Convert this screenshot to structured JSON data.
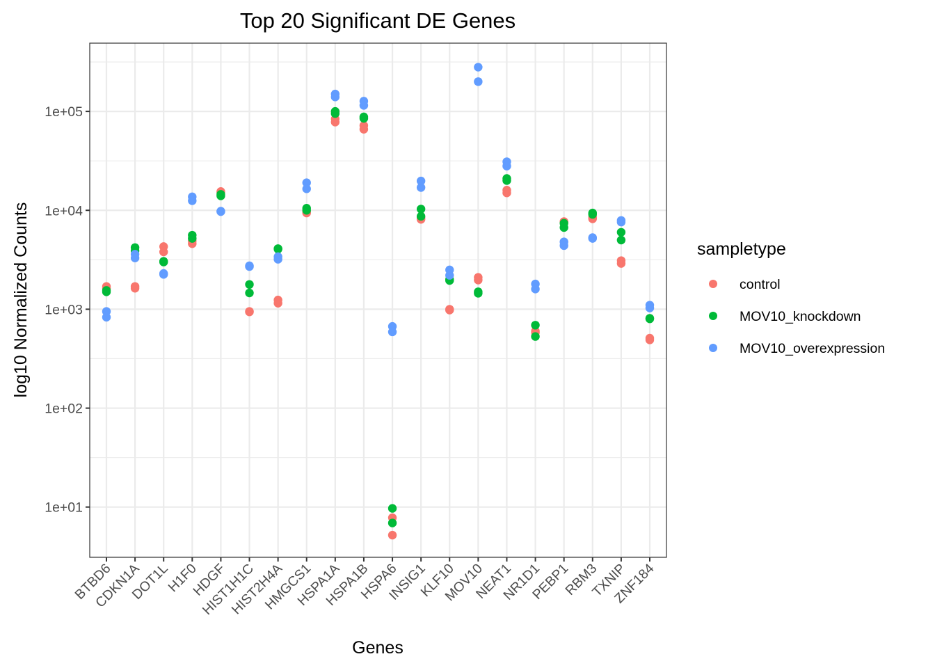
{
  "chart_data": {
    "type": "scatter",
    "title": "Top 20 Significant DE Genes",
    "xlabel": "Genes",
    "ylabel": "log10 Normalized Counts",
    "y_scale": "log10",
    "ylim": [
      3.1,
      490000
    ],
    "y_ticks": [
      10,
      100,
      1000,
      10000,
      100000
    ],
    "y_tick_labels": [
      "1e+01",
      "1e+02",
      "1e+03",
      "1e+04",
      "1e+05"
    ],
    "grid": true,
    "categories": [
      "BTBD6",
      "CDKN1A",
      "DOT1L",
      "H1F0",
      "HDGF",
      "HIST1H1C",
      "HIST2H4A",
      "HMGCS1",
      "HSPA1A",
      "HSPA1B",
      "HSPA6",
      "INSIG1",
      "KLF10",
      "MOV10",
      "NEAT1",
      "NR1D1",
      "PEBP1",
      "RBM3",
      "TXNIP",
      "ZNF184"
    ],
    "legend": {
      "title": "sampletype",
      "position": "right"
    },
    "series": [
      {
        "name": "control",
        "color": "#F8766D",
        "values": [
          [
            1700,
            1630
          ],
          [
            1700,
            1630
          ],
          [
            4300,
            3800
          ],
          [
            4900,
            4600
          ],
          [
            15500,
            15200
          ],
          [
            950,
            940
          ],
          [
            1240,
            1150
          ],
          [
            9600,
            9400
          ],
          [
            84000,
            78000
          ],
          [
            72000,
            66000
          ],
          [
            7.8,
            5.2
          ],
          [
            8400,
            8100
          ],
          [
            1000,
            980
          ],
          [
            2100,
            1970
          ],
          [
            16000,
            15000
          ],
          [
            600,
            580
          ],
          [
            7700,
            7600
          ],
          [
            8500,
            8200
          ],
          [
            3100,
            2900
          ],
          [
            510,
            490
          ]
        ]
      },
      {
        "name": "MOV10_knockdown",
        "color": "#00BA38",
        "values": [
          [
            1550,
            1500
          ],
          [
            4200,
            3900
          ],
          [
            3050,
            3000
          ],
          [
            5600,
            5200
          ],
          [
            14500,
            14000
          ],
          [
            1780,
            1460
          ],
          [
            4100,
            4050
          ],
          [
            10500,
            10000
          ],
          [
            100000,
            95000
          ],
          [
            88000,
            85000
          ],
          [
            9.7,
            6.9
          ],
          [
            10300,
            8700
          ],
          [
            2000,
            1950
          ],
          [
            1500,
            1450
          ],
          [
            21000,
            20000
          ],
          [
            690,
            530
          ],
          [
            7400,
            6700
          ],
          [
            9400,
            9100
          ],
          [
            6000,
            5000
          ],
          [
            810,
            800
          ]
        ]
      },
      {
        "name": "MOV10_overexpression",
        "color": "#619CFF",
        "values": [
          [
            950,
            830
          ],
          [
            3600,
            3300
          ],
          [
            2300,
            2250
          ],
          [
            13700,
            12500
          ],
          [
            9800,
            9700
          ],
          [
            2750,
            2700
          ],
          [
            3400,
            3200
          ],
          [
            19000,
            16500
          ],
          [
            150000,
            140000
          ],
          [
            127000,
            115000
          ],
          [
            670,
            590
          ],
          [
            19800,
            17000
          ],
          [
            2500,
            2200
          ],
          [
            280000,
            200000
          ],
          [
            31000,
            28000
          ],
          [
            1800,
            1600
          ],
          [
            4800,
            4400
          ],
          [
            5300,
            5200
          ],
          [
            7900,
            7600
          ],
          [
            1100,
            1030
          ]
        ]
      }
    ]
  }
}
